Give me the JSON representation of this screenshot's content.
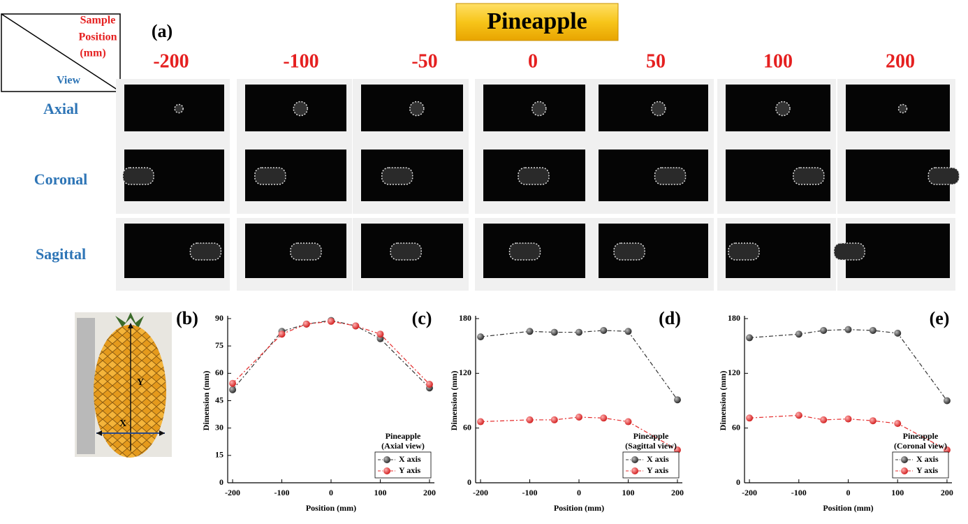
{
  "panel_a": {
    "title": "Pineapple",
    "label": "(a)",
    "corner_columns": [
      "Sample",
      "Position",
      "(mm)"
    ],
    "corner_rows": "View",
    "columns": [
      "-200",
      "-100",
      "-50",
      "0",
      "50",
      "100",
      "200"
    ],
    "rows": [
      "Axial",
      "Coronal",
      "Sagittal"
    ]
  },
  "photo": {
    "label": "(b)",
    "x_arrow": "X",
    "y_arrow": "Y"
  },
  "chart_data": [
    {
      "type": "line",
      "panel": "(c)",
      "xlabel": "Position (mm)",
      "ylabel": "Dimension (mm)",
      "legend_title": [
        "Pineapple",
        "(Axial view)"
      ],
      "x": [
        -200,
        -100,
        -50,
        0,
        50,
        100,
        200
      ],
      "xlim": [
        -210,
        210
      ],
      "xticks": [
        -200,
        -100,
        0,
        100,
        200
      ],
      "ylim": [
        0,
        90
      ],
      "yticks": [
        0,
        15,
        30,
        45,
        60,
        75,
        90
      ],
      "series": [
        {
          "name": "X axis",
          "color": "#333333",
          "values": [
            51,
            83,
            87,
            89,
            86,
            79,
            52
          ]
        },
        {
          "name": "Y axis",
          "color": "#e52b2b",
          "values": [
            54.5,
            81.5,
            87,
            88.5,
            86,
            81.5,
            54
          ]
        }
      ]
    },
    {
      "type": "line",
      "panel": "(d)",
      "xlabel": "Position (mm)",
      "ylabel": "Dimension (mm)",
      "legend_title": [
        "Pineapple",
        "(Sagittal view)"
      ],
      "x": [
        -200,
        -100,
        -50,
        0,
        50,
        100,
        200
      ],
      "xlim": [
        -210,
        210
      ],
      "xticks": [
        -200,
        -100,
        0,
        100,
        200
      ],
      "ylim": [
        0,
        180
      ],
      "yticks": [
        0,
        60,
        120,
        180
      ],
      "series": [
        {
          "name": "X axis",
          "color": "#333333",
          "values": [
            160,
            166,
            165,
            165,
            167,
            166,
            91
          ]
        },
        {
          "name": "Y axis",
          "color": "#e52b2b",
          "values": [
            67,
            69,
            69,
            72,
            71,
            67,
            36
          ]
        }
      ]
    },
    {
      "type": "line",
      "panel": "(e)",
      "xlabel": "Position (mm)",
      "ylabel": "Dimension (mm)",
      "legend_title": [
        "Pineapple",
        "(Coronal view)"
      ],
      "x": [
        -200,
        -100,
        -50,
        0,
        50,
        100,
        200
      ],
      "xlim": [
        -210,
        210
      ],
      "xticks": [
        -200,
        -100,
        0,
        100,
        200
      ],
      "ylim": [
        0,
        180
      ],
      "yticks": [
        0,
        60,
        120,
        180
      ],
      "series": [
        {
          "name": "X axis",
          "color": "#333333",
          "values": [
            159,
            163,
            167,
            168,
            167,
            164,
            90
          ]
        },
        {
          "name": "Y axis",
          "color": "#e52b2b",
          "values": [
            71,
            74,
            69,
            70,
            68,
            65,
            36
          ]
        }
      ]
    }
  ]
}
